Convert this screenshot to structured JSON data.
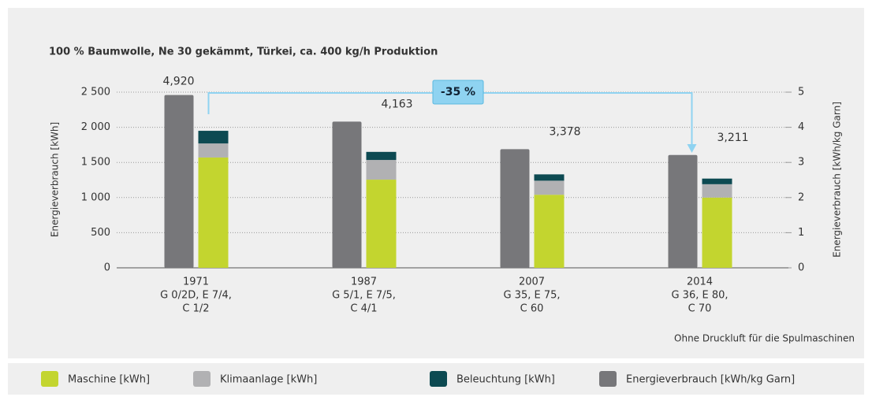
{
  "chart_data": {
    "type": "bar",
    "title": "100 % Baumwolle, Ne 30 gekämmt, Türkei, ca. 400 kg/h Produktion",
    "ylabel": "Energieverbrauch [kWh]",
    "y2label": "Energieverbrauch [kWh/kg Garn]",
    "footnote": "Ohne Druckluft für die Spulmaschinen",
    "annotation": "-35 %",
    "annotation_color": "#8fd3f1",
    "categories": [
      [
        "1971",
        "G 0/2D, E 7/4,",
        "C 1/2"
      ],
      [
        "1987",
        "G 5/1, E 7/5,",
        "C 4/1"
      ],
      [
        "2007",
        "G 35, E 75,",
        "C 60"
      ],
      [
        "2014",
        "G 36, E 80,",
        "C 70"
      ]
    ],
    "series": [
      {
        "name": "Maschine [kWh]",
        "color": "#c3d52f",
        "values": [
          1570,
          1255,
          1040,
          1000
        ]
      },
      {
        "name": "Klimaanlage [kWh]",
        "color": "#b1b1b3",
        "values": [
          200,
          280,
          200,
          190
        ]
      },
      {
        "name": "Beleuchtung [kWh]",
        "color": "#0d4a52",
        "values": [
          180,
          115,
          90,
          80
        ]
      },
      {
        "name": "Energieverbrauch [kWh/kg Garn]",
        "color": "#77777a",
        "axis": "y2",
        "values": [
          4.92,
          4.163,
          3.378,
          3.211
        ],
        "value_labels": [
          "4,920",
          "4,163",
          "3,378",
          "3,211"
        ]
      }
    ],
    "ylim": [
      0,
      2500
    ],
    "yticks": [
      {
        "value": 0,
        "label": "0"
      },
      {
        "value": 500,
        "label": "500"
      },
      {
        "value": 1000,
        "label": "1 000"
      },
      {
        "value": 1500,
        "label": "1 500"
      },
      {
        "value": 2000,
        "label": "2 000"
      },
      {
        "value": 2500,
        "label": "2 500"
      }
    ],
    "y2lim": [
      0,
      5
    ],
    "y2ticks": [
      0,
      1,
      2,
      3,
      4,
      5
    ],
    "grid": true
  }
}
